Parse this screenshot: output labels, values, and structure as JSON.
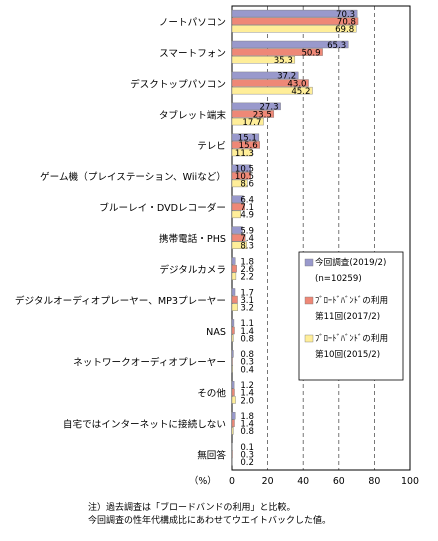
{
  "chart_data": {
    "type": "bar",
    "orientation": "horizontal",
    "categories": [
      "ノートパソコン",
      "スマートフォン",
      "デスクトップパソコン",
      "タブレット端末",
      "テレビ",
      "ゲーム機（プレイステーション、Wiiなど）",
      "ブルーレイ・DVDレコーダー",
      "携帯電話・PHS",
      "デジタルカメラ",
      "デジタルオーディオプレーヤー、MP3プレーヤー",
      "NAS",
      "ネットワークオーディオプレーヤー",
      "その他",
      "自宅ではインターネットに接続しない",
      "無回答"
    ],
    "series": [
      {
        "name": "今回調査(2019/2)\n(n=10259)",
        "color": "#9999cc",
        "values": [
          70.3,
          65.3,
          37.2,
          27.3,
          15.1,
          10.5,
          6.4,
          5.9,
          1.8,
          1.7,
          1.1,
          0.8,
          1.2,
          1.8,
          0.1
        ],
        "value_labels": [
          "70.3",
          "65.3",
          "37.2",
          "27.3",
          "15.1",
          "10.5",
          "6.4",
          "5.9",
          "1.8",
          "1.7",
          "1.1",
          "0.8",
          "1.2",
          "1.8",
          "0.1"
        ]
      },
      {
        "name": "ﾌﾞﾛｰﾄﾞﾊﾞﾝﾄﾞの利用\n第11回(2017/2)",
        "color": "#ee8877",
        "values": [
          70.8,
          50.9,
          43.0,
          23.5,
          15.6,
          10.5,
          7.1,
          7.4,
          2.6,
          3.1,
          1.4,
          0.3,
          1.4,
          1.4,
          0.3
        ],
        "value_labels": [
          "70.8",
          "50.9",
          "43.0",
          "23.5",
          "15.6",
          "10.5",
          "7.1",
          "7.4",
          "2.6",
          "3.1",
          "1.4",
          "0.3",
          "1.4",
          "1.4",
          "0.3"
        ]
      },
      {
        "name": "ﾌﾞﾛｰﾄﾞﾊﾞﾝﾄﾞの利用\n第10回(2015/2)",
        "color": "#ffee99",
        "values": [
          69.8,
          35.3,
          45.2,
          17.7,
          11.3,
          8.6,
          4.9,
          8.3,
          2.2,
          3.2,
          0.8,
          0.4,
          2.0,
          0.8,
          0.2
        ],
        "value_labels": [
          "69.8",
          "35.3",
          "45.2",
          "17.7",
          "11.3",
          "8.6",
          "4.9",
          "8.3",
          "2.2",
          "3.2",
          "0.8",
          "0.4",
          "2.0",
          "0.8",
          "0.2"
        ]
      }
    ],
    "xlim": [
      0,
      100
    ],
    "xticks": [
      "0",
      "20",
      "40",
      "60",
      "80",
      "100"
    ],
    "unit_label": "（%）",
    "grid": "vertical dashed",
    "legend_position": "right"
  },
  "notes": [
    "注）過去調査は「ブロードバンドの利用」と比較。",
    "今回調査の性年代構成比にあわせてウエイトバックした値。"
  ]
}
